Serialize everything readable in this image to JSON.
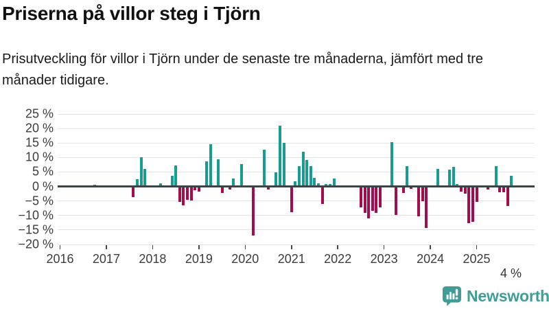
{
  "header": {
    "title": "Priserna på villor steg i Tjörn",
    "subtitle": "Prisutveckling för villor i Tjörn under de senaste tre månaderna, jämfört med tre månader tidigare."
  },
  "chart_data": {
    "type": "bar",
    "title": "Priserna på villor steg i Tjörn",
    "subtitle": "Prisutveckling för villor i Tjörn under de senaste tre månaderna, jämfört med tre månader tidigare.",
    "unit": "%",
    "ylim": [
      -20,
      25
    ],
    "grid": "horizontal",
    "legend_position": "none",
    "yticks": [
      {
        "value": 25,
        "label": "25 %"
      },
      {
        "value": 20,
        "label": "20 %"
      },
      {
        "value": 15,
        "label": "15 %"
      },
      {
        "value": 10,
        "label": "10 %"
      },
      {
        "value": 5,
        "label": "5 %"
      },
      {
        "value": 0,
        "label": "0 %"
      },
      {
        "value": -5,
        "label": "−5 %"
      },
      {
        "value": -10,
        "label": "−10 %"
      },
      {
        "value": -15,
        "label": "−15 %"
      },
      {
        "value": -20,
        "label": "−20 %"
      }
    ],
    "x_years": [
      "2016",
      "2017",
      "2018",
      "2019",
      "2020",
      "2021",
      "2022",
      "2023",
      "2024",
      "2025"
    ],
    "colors": {
      "positive": "#169c92",
      "negative": "#a50b4d"
    },
    "annotation": {
      "text": "4 %",
      "month": "2025-10"
    },
    "bars": [
      {
        "month": "2016-10",
        "value": 0.5
      },
      {
        "month": "2017-08",
        "value": -3.6
      },
      {
        "month": "2017-09",
        "value": 2.5
      },
      {
        "month": "2017-10",
        "value": 10.0
      },
      {
        "month": "2017-11",
        "value": 6.0
      },
      {
        "month": "2018-03",
        "value": 1.0
      },
      {
        "month": "2018-06",
        "value": 3.7
      },
      {
        "month": "2018-07",
        "value": 7.2
      },
      {
        "month": "2018-08",
        "value": -5.2
      },
      {
        "month": "2018-09",
        "value": -6.5
      },
      {
        "month": "2018-10",
        "value": -4.6
      },
      {
        "month": "2018-11",
        "value": -4.8
      },
      {
        "month": "2018-12",
        "value": -1.3
      },
      {
        "month": "2019-01",
        "value": -1.8
      },
      {
        "month": "2019-03",
        "value": 8.6
      },
      {
        "month": "2019-04",
        "value": 14.6
      },
      {
        "month": "2019-06",
        "value": 9.4
      },
      {
        "month": "2019-07",
        "value": -2.2
      },
      {
        "month": "2019-09",
        "value": -1.0
      },
      {
        "month": "2019-10",
        "value": 2.8
      },
      {
        "month": "2019-12",
        "value": 7.8
      },
      {
        "month": "2020-03",
        "value": -17.0
      },
      {
        "month": "2020-06",
        "value": 12.8
      },
      {
        "month": "2020-07",
        "value": -1.0
      },
      {
        "month": "2020-09",
        "value": 4.8
      },
      {
        "month": "2020-10",
        "value": 21.0
      },
      {
        "month": "2020-11",
        "value": 15.0
      },
      {
        "month": "2021-01",
        "value": -8.8
      },
      {
        "month": "2021-02",
        "value": 1.8
      },
      {
        "month": "2021-03",
        "value": 6.9
      },
      {
        "month": "2021-04",
        "value": 11.9
      },
      {
        "month": "2021-05",
        "value": 9.1
      },
      {
        "month": "2021-06",
        "value": 6.9
      },
      {
        "month": "2021-07",
        "value": 2.9
      },
      {
        "month": "2021-08",
        "value": 1.0
      },
      {
        "month": "2021-09",
        "value": -6.0
      },
      {
        "month": "2021-10",
        "value": 0.8
      },
      {
        "month": "2021-11",
        "value": 0.8
      },
      {
        "month": "2021-12",
        "value": 2.8
      },
      {
        "month": "2022-07",
        "value": -7.2
      },
      {
        "month": "2022-08",
        "value": -9.1
      },
      {
        "month": "2022-09",
        "value": -11.0
      },
      {
        "month": "2022-10",
        "value": -8.5
      },
      {
        "month": "2022-11",
        "value": -9.1
      },
      {
        "month": "2022-12",
        "value": -7.2
      },
      {
        "month": "2023-03",
        "value": 15.2
      },
      {
        "month": "2023-04",
        "value": -9.8
      },
      {
        "month": "2023-06",
        "value": -2.2
      },
      {
        "month": "2023-07",
        "value": 6.9
      },
      {
        "month": "2023-08",
        "value": -0.9
      },
      {
        "month": "2023-10",
        "value": -10.2
      },
      {
        "month": "2023-11",
        "value": -5.0
      },
      {
        "month": "2023-12",
        "value": -14.2
      },
      {
        "month": "2024-03",
        "value": 6.0
      },
      {
        "month": "2024-06",
        "value": 5.9
      },
      {
        "month": "2024-07",
        "value": 6.8
      },
      {
        "month": "2024-08",
        "value": 0.9
      },
      {
        "month": "2024-09",
        "value": -1.8
      },
      {
        "month": "2024-10",
        "value": -2.5
      },
      {
        "month": "2024-11",
        "value": -12.7
      },
      {
        "month": "2024-12",
        "value": -12.2
      },
      {
        "month": "2025-01",
        "value": -5.2
      },
      {
        "month": "2025-04",
        "value": -1.0
      },
      {
        "month": "2025-06",
        "value": 6.9
      },
      {
        "month": "2025-07",
        "value": -1.9
      },
      {
        "month": "2025-08",
        "value": -2.1
      },
      {
        "month": "2025-09",
        "value": -6.8
      },
      {
        "month": "2025-10",
        "value": 3.8
      }
    ]
  },
  "branding": {
    "logo_text": "Newsworthy",
    "logo_color": "#3f9d96"
  }
}
